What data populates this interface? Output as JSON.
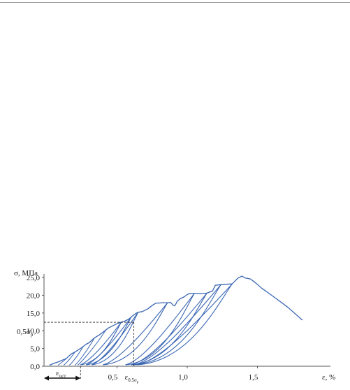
{
  "chart_data": {
    "type": "line",
    "ylabel": "σ, МПа",
    "xlabel": "ε, %",
    "y_ticks": [
      "25,0",
      "20,0",
      "15,0",
      "10,0",
      "5,0",
      "0,0"
    ],
    "y_tick_values": [
      25,
      20,
      15,
      10,
      5,
      0
    ],
    "x_ticks": [
      "0,5",
      "1,0",
      "1,5"
    ],
    "x_tick_values": [
      0.5,
      1.0,
      1.5
    ],
    "xlim": [
      0,
      2.0
    ],
    "ylim": [
      0,
      26
    ],
    "grid": false,
    "annotations": {
      "half_sigma_p_label": "0,5σ",
      "half_sigma_p_sub": "р",
      "half_sigma_p_value": 12.4,
      "eps_half_label": "ε",
      "eps_half_sub": "0,5σ",
      "eps_half_subsub": "р",
      "eps_half_value": 0.62,
      "eps_res_label": "ε",
      "eps_res_sub": "ост",
      "eps_res_value": 0.24
    },
    "series": [
      {
        "x": [
          0.02,
          0.05,
          0.08,
          0.11,
          0.14,
          0.16,
          0.18,
          0.2,
          0.22,
          0.24,
          0.26,
          0.28,
          0.3,
          0.32,
          0.34,
          0.36,
          0.38,
          0.4,
          0.42,
          0.44,
          0.46,
          0.48,
          0.5,
          0.52,
          0.53,
          0.56,
          0.58,
          0.6,
          0.62,
          0.64,
          0.65,
          0.68,
          0.7,
          0.72,
          0.74,
          0.76,
          0.78,
          0.8,
          0.82,
          0.86,
          0.88,
          0.9,
          0.91,
          0.92,
          0.93,
          0.95,
          0.98,
          1.0,
          1.02,
          1.05,
          1.08,
          1.11,
          1.14,
          1.18,
          1.2,
          1.24,
          1.28,
          1.32,
          1.36,
          1.39,
          1.41,
          1.45,
          1.49,
          1.53,
          1.58,
          1.65,
          1.72,
          1.82
        ],
        "y": [
          0.3,
          0.8,
          1.2,
          1.7,
          2.2,
          3.0,
          3.6,
          4.0,
          4.5,
          5.0,
          5.6,
          6.2,
          6.6,
          7.3,
          8.0,
          8.5,
          9.0,
          9.6,
          10.2,
          10.8,
          11.2,
          11.6,
          12.0,
          12.3,
          12.4,
          12.8,
          13.2,
          13.8,
          14.5,
          15.0,
          15.2,
          15.4,
          15.8,
          16.2,
          16.8,
          17.4,
          17.8,
          17.8,
          17.9,
          17.9,
          18.0,
          17.2,
          17.0,
          17.6,
          18.4,
          19.0,
          19.6,
          20.2,
          20.5,
          20.5,
          20.5,
          20.5,
          20.6,
          21.2,
          22.8,
          23.0,
          23.1,
          23.2,
          24.8,
          25.4,
          24.9,
          24.6,
          23.4,
          22.0,
          20.6,
          18.6,
          16.5,
          13.0
        ]
      }
    ]
  }
}
